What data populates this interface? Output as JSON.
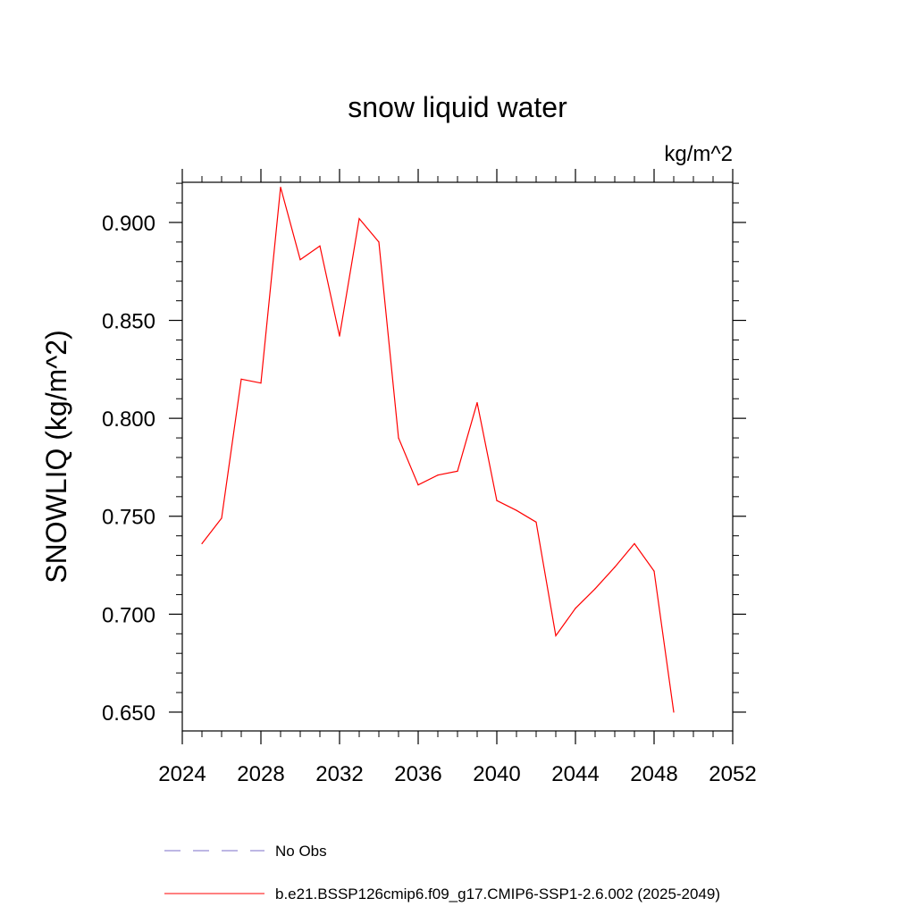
{
  "chart_data": {
    "type": "line",
    "title": "snow liquid water",
    "units_label": "kg/m^2",
    "ylabel": "SNOWLIQ  (kg/m^2)",
    "xlabel": "",
    "xlim": [
      2024,
      2052
    ],
    "ylim": [
      0.6404,
      0.9205
    ],
    "x_ticks": [
      2024,
      2028,
      2032,
      2036,
      2040,
      2044,
      2048,
      2052
    ],
    "x_tick_labels": [
      "2024",
      "2028",
      "2032",
      "2036",
      "2040",
      "2044",
      "2048",
      "2052"
    ],
    "y_ticks": [
      0.65,
      0.7,
      0.75,
      0.8,
      0.85,
      0.9
    ],
    "y_tick_labels": [
      "0.650",
      "0.700",
      "0.750",
      "0.800",
      "0.850",
      "0.900"
    ],
    "grid": false,
    "legend_position": "bottom",
    "series": [
      {
        "name": "No Obs",
        "color": "#7b6fc9",
        "style": "dashed",
        "x": [],
        "values": []
      },
      {
        "name": "b.e21.BSSP126cmip6.f09_g17.CMIP6-SSP1-2.6.002 (2025-2049)",
        "color": "#ff0000",
        "style": "solid",
        "x": [
          2025,
          2026,
          2027,
          2028,
          2029,
          2030,
          2031,
          2032,
          2033,
          2034,
          2035,
          2036,
          2037,
          2038,
          2039,
          2040,
          2041,
          2042,
          2043,
          2044,
          2045,
          2046,
          2047,
          2048,
          2049
        ],
        "values": [
          0.736,
          0.749,
          0.82,
          0.818,
          0.918,
          0.881,
          0.888,
          0.842,
          0.902,
          0.89,
          0.79,
          0.766,
          0.771,
          0.773,
          0.808,
          0.758,
          0.753,
          0.747,
          0.689,
          0.703,
          0.713,
          0.724,
          0.736,
          0.722,
          0.65
        ]
      }
    ]
  }
}
